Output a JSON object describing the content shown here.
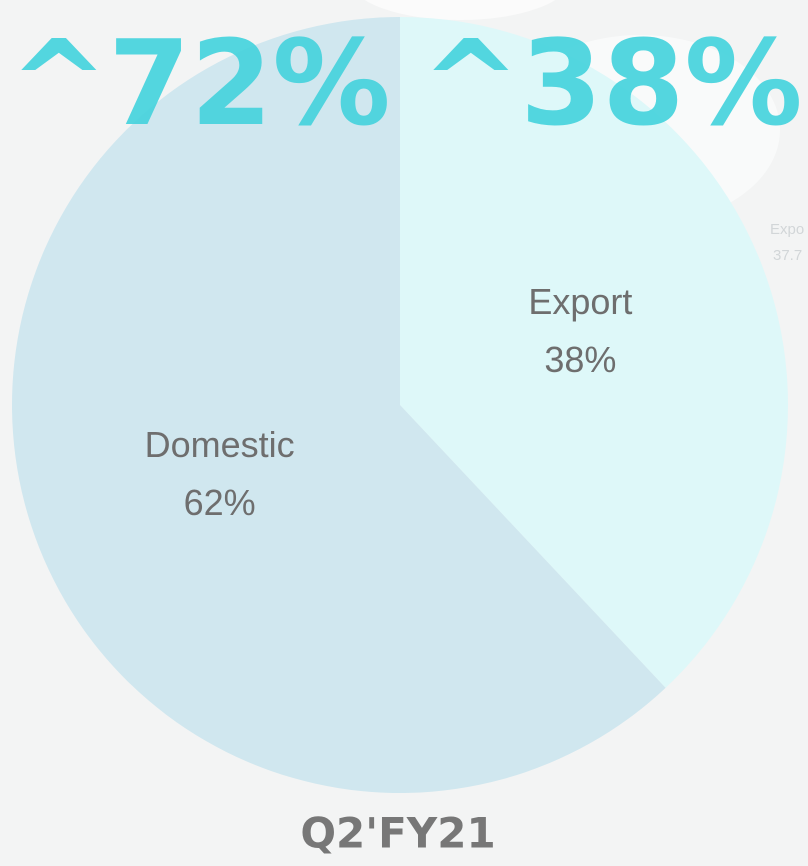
{
  "chart_data": {
    "type": "pie",
    "categories": [
      "Domestic",
      "Export"
    ],
    "values": [
      62,
      38
    ],
    "value_labels": [
      "62%",
      "38%"
    ],
    "colors": [
      "#cde6ee",
      "#dcf8f9"
    ],
    "headlines": [
      "^72%",
      "^38%"
    ],
    "side_note": [
      "Expo",
      "37.7"
    ],
    "footer": "Q2'FY21"
  }
}
